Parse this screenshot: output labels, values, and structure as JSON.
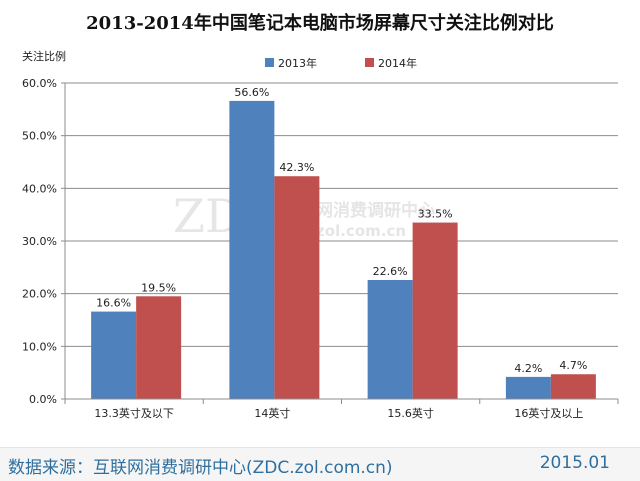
{
  "chart_data": {
    "type": "bar",
    "title": "2013-2014年中国笔记本电脑市场屏幕尺寸关注比例对比",
    "ylabel": "关注比例",
    "xlabel": "",
    "categories": [
      "13.3英寸及以下",
      "14英寸",
      "15.6英寸",
      "16英寸及以上"
    ],
    "series": [
      {
        "name": "2013年",
        "color": "#4f81bd",
        "values": [
          16.6,
          56.6,
          22.6,
          4.2
        ],
        "labels": [
          "16.6%",
          "56.6%",
          "22.6%",
          "4.2%"
        ]
      },
      {
        "name": "2014年",
        "color": "#c0504d",
        "values": [
          19.5,
          42.3,
          33.5,
          4.7
        ],
        "labels": [
          "19.5%",
          "42.3%",
          "33.5%",
          "4.7%"
        ]
      }
    ],
    "ylim": [
      0,
      60
    ],
    "yticks": [
      0,
      10,
      20,
      30,
      40,
      50,
      60
    ],
    "ytick_labels": [
      "0.0%",
      "10.0%",
      "20.0%",
      "30.0%",
      "40.0%",
      "50.0%",
      "60.0%"
    ],
    "grid": true,
    "legend_position": "top"
  },
  "watermark": {
    "logo": "ZDC",
    "text": "互联网消费调研中心",
    "url": "zdc.zol.com.cn"
  },
  "footer": {
    "source": "数据来源：互联网消费调研中心(ZDC.zol.com.cn)",
    "date": "2015.01"
  }
}
